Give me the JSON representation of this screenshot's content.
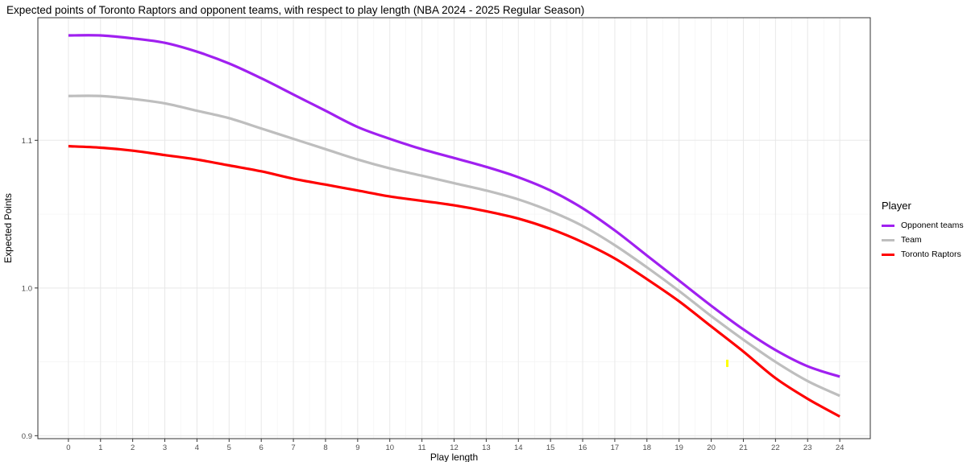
{
  "chart_data": {
    "type": "line",
    "title": "Expected points of Toronto Raptors and opponent teams, with respect to play length (NBA 2024 - 2025 Regular Season)",
    "xlabel": "Play length",
    "ylabel": "Expected Points",
    "xlim": [
      -0.95,
      24.95
    ],
    "ylim": [
      0.898,
      1.183
    ],
    "x_ticks": [
      0,
      1,
      2,
      3,
      4,
      5,
      6,
      7,
      8,
      9,
      10,
      11,
      12,
      13,
      14,
      15,
      16,
      17,
      18,
      19,
      20,
      21,
      22,
      23,
      24
    ],
    "y_ticks": [
      0.9,
      1.0,
      1.1
    ],
    "y_tick_labels": [
      "0.9",
      "1.0",
      "1.1"
    ],
    "grid": true,
    "legend_title": "Player",
    "legend_position": "right",
    "x": [
      0,
      1,
      2,
      3,
      4,
      5,
      6,
      7,
      8,
      9,
      10,
      11,
      12,
      13,
      14,
      15,
      16,
      17,
      18,
      19,
      20,
      21,
      22,
      23,
      24
    ],
    "series": [
      {
        "name": "Opponent teams",
        "color": "#a020f0",
        "values": [
          1.171,
          1.171,
          1.169,
          1.166,
          1.16,
          1.152,
          1.142,
          1.131,
          1.12,
          1.109,
          1.101,
          1.094,
          1.088,
          1.082,
          1.075,
          1.066,
          1.054,
          1.039,
          1.022,
          1.005,
          0.988,
          0.972,
          0.958,
          0.947,
          0.94
        ]
      },
      {
        "name": "Team",
        "color": "#bebebe",
        "values": [
          1.13,
          1.13,
          1.128,
          1.125,
          1.12,
          1.115,
          1.108,
          1.101,
          1.094,
          1.087,
          1.081,
          1.076,
          1.071,
          1.066,
          1.06,
          1.052,
          1.042,
          1.029,
          1.014,
          0.998,
          0.981,
          0.965,
          0.95,
          0.937,
          0.927
        ]
      },
      {
        "name": "Toronto Raptors",
        "color": "#ff0000",
        "values": [
          1.096,
          1.095,
          1.093,
          1.09,
          1.087,
          1.083,
          1.079,
          1.074,
          1.07,
          1.066,
          1.062,
          1.059,
          1.056,
          1.052,
          1.047,
          1.04,
          1.031,
          1.02,
          1.006,
          0.991,
          0.974,
          0.957,
          0.939,
          0.925,
          0.913
        ]
      }
    ],
    "marker": {
      "x": 20.5,
      "y": 0.949,
      "color": "#ffff00"
    }
  }
}
